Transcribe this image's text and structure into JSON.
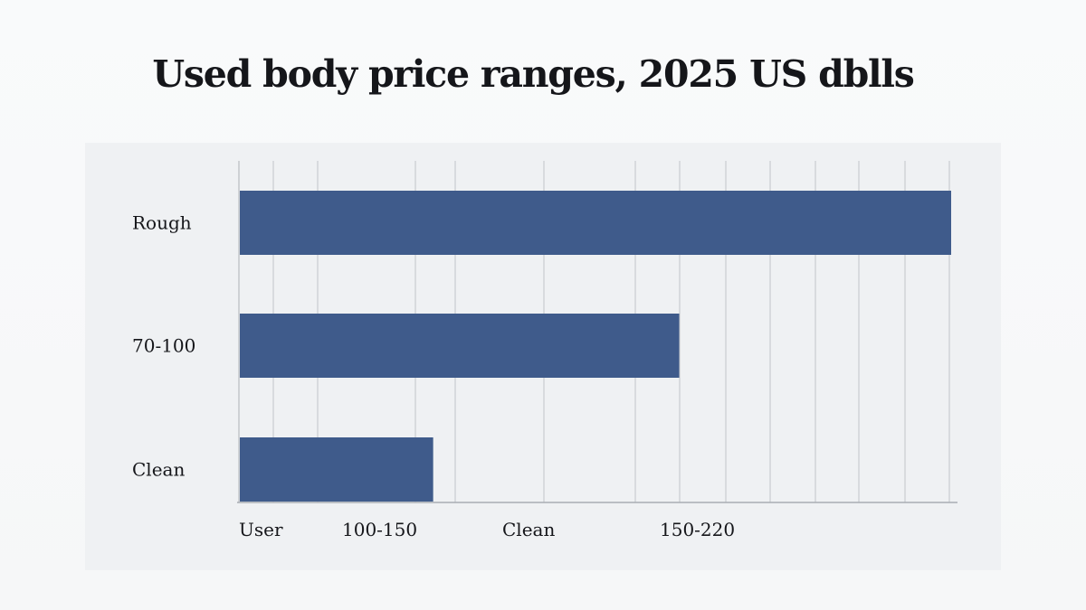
{
  "chart_data": {
    "type": "bar",
    "orientation": "horizontal",
    "title": "Used body price ranges, 2025 US dblls",
    "categories": [
      "Rough",
      "70-100",
      "Clean"
    ],
    "values": [
      220,
      136,
      60
    ],
    "x_tick_labels": [
      "User",
      "100-150",
      "Clean",
      "150-220"
    ],
    "xlabel": "",
    "ylabel": "",
    "xlim": [
      0,
      220
    ],
    "grid": true,
    "legend": "none",
    "bar_color": "#3f5b8b",
    "grid_color": "#c9ccd0",
    "panel_color": "#eff1f3"
  }
}
